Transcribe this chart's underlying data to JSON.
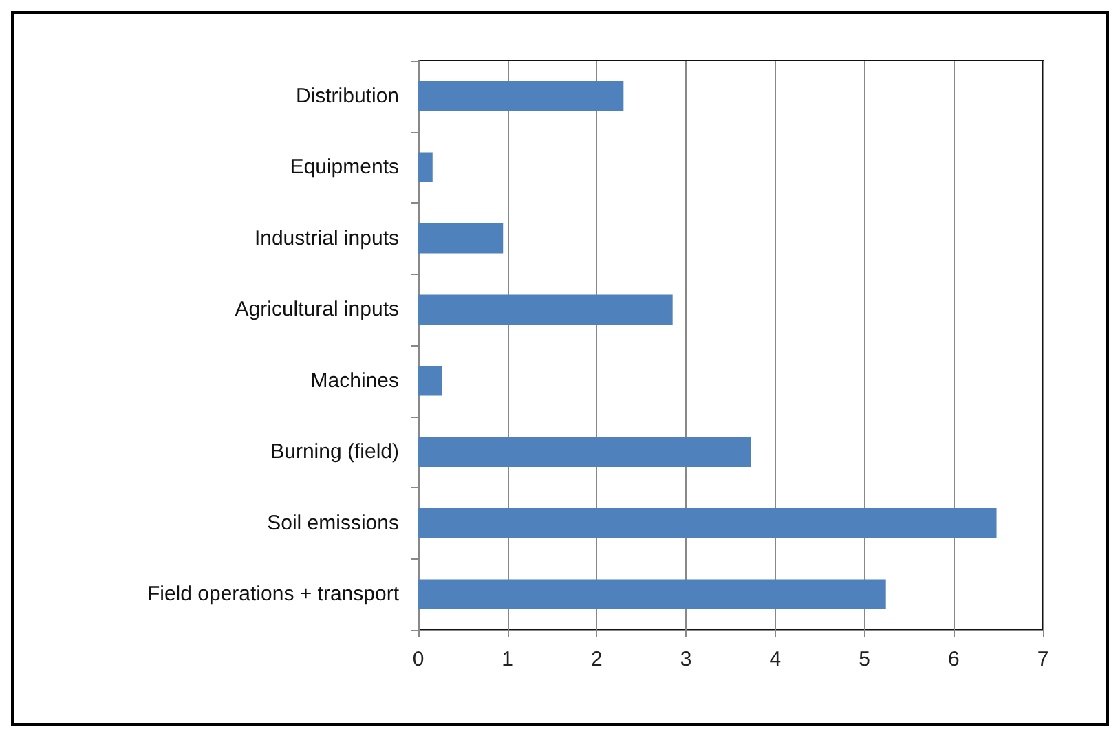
{
  "chart_data": {
    "type": "bar",
    "orientation": "horizontal",
    "categories": [
      "Distribution",
      "Equipments",
      "Industrial inputs",
      "Agricultural inputs",
      "Machines",
      "Burning (field)",
      "Soil emissions",
      "Field operations + transport"
    ],
    "values": [
      2.3,
      0.16,
      0.95,
      2.85,
      0.27,
      3.73,
      6.48,
      5.24
    ],
    "color": "#4f81bd",
    "xlim": [
      0,
      7
    ],
    "xticks": [
      0,
      1,
      2,
      3,
      4,
      5,
      6,
      7
    ],
    "grid": "x"
  }
}
